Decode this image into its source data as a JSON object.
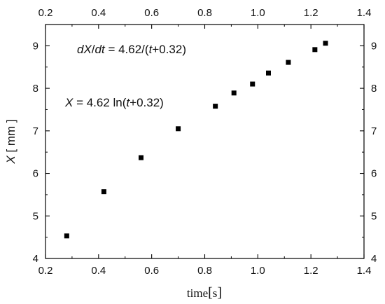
{
  "chart_data": {
    "type": "scatter",
    "x": [
      0.28,
      0.42,
      0.56,
      0.7,
      0.84,
      0.91,
      0.98,
      1.04,
      1.115,
      1.215,
      1.255
    ],
    "y": [
      4.53,
      5.57,
      6.37,
      7.05,
      7.58,
      7.89,
      8.1,
      8.36,
      8.61,
      8.91,
      9.06
    ],
    "xlim": [
      0.2,
      1.4
    ],
    "ylim": [
      4,
      9.5
    ],
    "x_ticks": [
      "0.2",
      "0.4",
      "0.6",
      "0.8",
      "1.0",
      "1.2",
      "1.4"
    ],
    "y_ticks": [
      "4",
      "5",
      "6",
      "7",
      "8",
      "9"
    ],
    "xlabel": {
      "main": "time",
      "bracket_open": "[",
      "unit": "s",
      "bracket_close": "]"
    },
    "ylabel": {
      "var": "X",
      "unit": " [ mm ]"
    },
    "annotations": {
      "rate": {
        "var": "dX",
        "slash": "/",
        "var2": "dt",
        "eq": " = 4.62/(",
        "t": "t",
        "tail": "+0.32)"
      },
      "position": {
        "var": "X",
        "eq": " = 4.62 ln(",
        "t": "t",
        "tail": "+0.32)"
      }
    },
    "marker": "square",
    "marker_color": "#000000",
    "mirror_axes": true,
    "grid": false
  }
}
